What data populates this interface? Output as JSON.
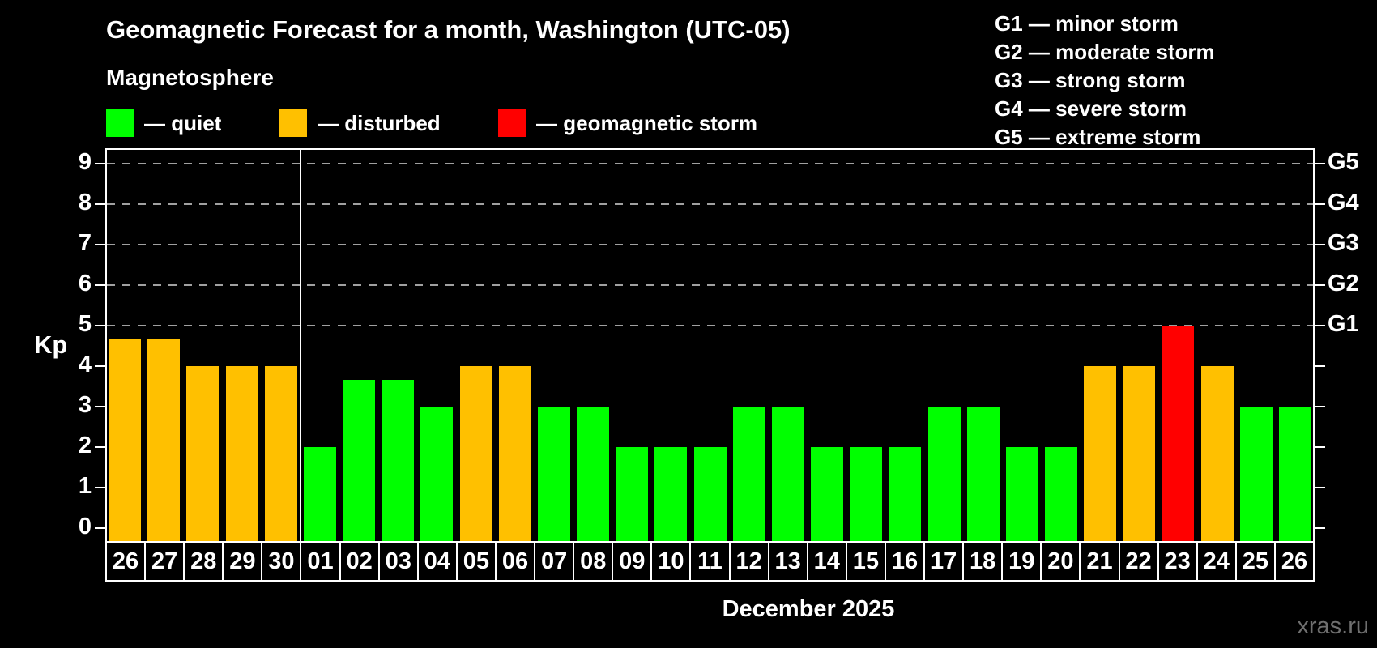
{
  "title": "Geomagnetic Forecast for a month, Washington (UTC-05)",
  "subtitle": "Magnetosphere",
  "legend": {
    "items": [
      {
        "status": "quiet",
        "label": "— quiet"
      },
      {
        "status": "disturbed",
        "label": "— disturbed"
      },
      {
        "status": "storm",
        "label": "— geomagnetic storm"
      }
    ]
  },
  "storm_scale_legend": [
    "G1 — minor storm",
    "G2 — moderate storm",
    "G3 — strong storm",
    "G4 — severe storm",
    "G5 — extreme storm"
  ],
  "colors": {
    "quiet": "#00ff00",
    "disturbed": "#ffc000",
    "storm": "#ff0000",
    "axis": "#ffffff",
    "grid": "#a0a0a0",
    "background": "#000000",
    "watermark": "#6f6f6f"
  },
  "chart_data": {
    "type": "bar",
    "title": "Geomagnetic Forecast for a month, Washington (UTC-05)",
    "ylabel": "Kp",
    "xlabel": "December 2025",
    "ylim": [
      0,
      9
    ],
    "yticks": [
      0,
      1,
      2,
      3,
      4,
      5,
      6,
      7,
      8,
      9
    ],
    "gridlines_at": [
      5,
      6,
      7,
      8,
      9
    ],
    "grid": "dashed, only at storm levels 5-9",
    "legend_position": "top-left",
    "right_axis": [
      {
        "kp": 5,
        "label": "G1"
      },
      {
        "kp": 6,
        "label": "G2"
      },
      {
        "kp": 7,
        "label": "G3"
      },
      {
        "kp": 8,
        "label": "G4"
      },
      {
        "kp": 9,
        "label": "G5"
      }
    ],
    "categories": [
      "26",
      "27",
      "28",
      "29",
      "30",
      "01",
      "02",
      "03",
      "04",
      "05",
      "06",
      "07",
      "08",
      "09",
      "10",
      "11",
      "12",
      "13",
      "14",
      "15",
      "16",
      "17",
      "18",
      "19",
      "20",
      "21",
      "22",
      "23",
      "24",
      "25",
      "26"
    ],
    "values": [
      4.67,
      4.67,
      4,
      4,
      4,
      2,
      3.67,
      3.67,
      3,
      4,
      4,
      3,
      3,
      2,
      2,
      2,
      3,
      3,
      2,
      2,
      2,
      3,
      3,
      2,
      2,
      4,
      4,
      5,
      4,
      3,
      3
    ],
    "statuses": [
      "disturbed",
      "disturbed",
      "disturbed",
      "disturbed",
      "disturbed",
      "quiet",
      "quiet",
      "quiet",
      "quiet",
      "disturbed",
      "disturbed",
      "quiet",
      "quiet",
      "quiet",
      "quiet",
      "quiet",
      "quiet",
      "quiet",
      "quiet",
      "quiet",
      "quiet",
      "quiet",
      "quiet",
      "quiet",
      "quiet",
      "disturbed",
      "disturbed",
      "storm",
      "disturbed",
      "quiet",
      "quiet"
    ],
    "month_separator_after_index": 4
  },
  "watermark": "xras.ru"
}
